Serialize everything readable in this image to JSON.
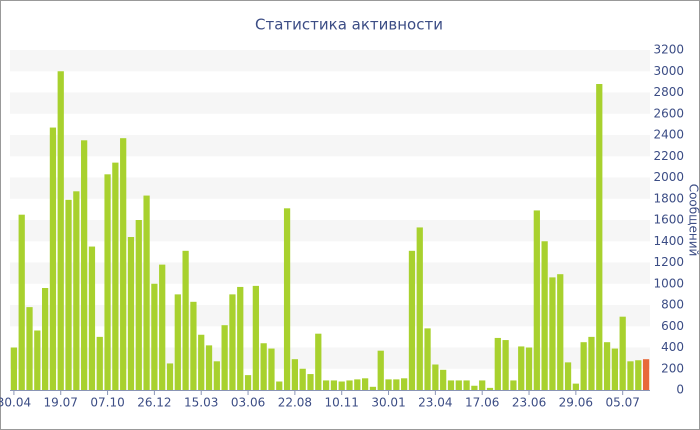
{
  "chart_data": {
    "type": "bar",
    "title": "Статистика активности",
    "y_label": "Сообщений",
    "categories": [
      "30.04",
      null,
      null,
      null,
      null,
      null,
      "19.07",
      null,
      null,
      null,
      null,
      null,
      "07.10",
      null,
      null,
      null,
      null,
      null,
      "26.12",
      null,
      null,
      null,
      null,
      null,
      "15.03",
      null,
      null,
      null,
      null,
      null,
      "03.06",
      null,
      null,
      null,
      null,
      null,
      "22.08",
      null,
      null,
      null,
      null,
      null,
      "10.11",
      null,
      null,
      null,
      null,
      null,
      "30.01",
      null,
      null,
      null,
      null,
      null,
      "23.04",
      null,
      null,
      null,
      null,
      null,
      "17.06",
      null,
      null,
      null,
      null,
      null,
      "23.06",
      null,
      null,
      null,
      null,
      null,
      "29.06",
      null,
      null,
      null,
      null,
      null,
      "05.07",
      null,
      null,
      null
    ],
    "values": [
      400,
      1650,
      780,
      560,
      960,
      2470,
      3000,
      1790,
      1870,
      2350,
      1350,
      500,
      2030,
      2140,
      2370,
      1440,
      1600,
      1830,
      1000,
      1180,
      250,
      900,
      1310,
      830,
      520,
      420,
      270,
      610,
      900,
      970,
      140,
      980,
      440,
      390,
      80,
      1710,
      290,
      200,
      150,
      530,
      90,
      90,
      80,
      90,
      100,
      110,
      30,
      370,
      100,
      100,
      110,
      1310,
      1530,
      580,
      240,
      190,
      90,
      90,
      90,
      40,
      90,
      20,
      490,
      470,
      90,
      410,
      400,
      1690,
      1400,
      1060,
      1090,
      260,
      60,
      450,
      500,
      2880,
      450,
      390,
      690,
      270,
      280,
      290
    ],
    "color": "#a8d12e",
    "highlight_color": "#e8693a",
    "ylim": [
      0,
      3200
    ],
    "yticks": [
      0,
      200,
      400,
      600,
      800,
      1000,
      1200,
      1400,
      1600,
      1800,
      2000,
      2200,
      2400,
      2600,
      2800,
      3000,
      3200
    ],
    "grid": true
  }
}
